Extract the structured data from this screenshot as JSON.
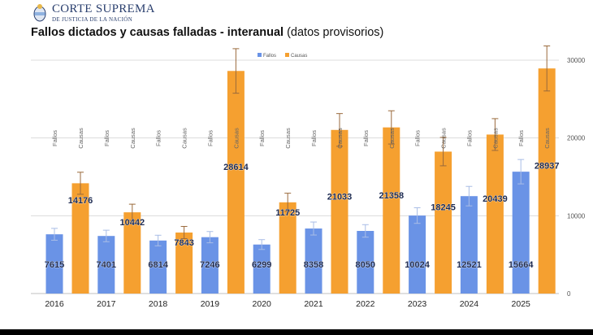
{
  "header": {
    "org_name": "CORTE SUPREMA",
    "org_sub": "DE JUSTICIA DE LA NACIÓN"
  },
  "colors": {
    "fallos": "#6a93e6",
    "causas": "#f5a030",
    "error_bar": "#9a6a3c"
  },
  "chart_data": {
    "type": "bar",
    "title": "Fallos dictados y causas falladas - interanual",
    "subtitle": "(datos provisorios)",
    "categories": [
      "2016",
      "2017",
      "2018",
      "2019",
      "2020",
      "2021",
      "2022",
      "2023",
      "2024",
      "2025"
    ],
    "series": [
      {
        "name": "Fallos",
        "values": [
          7615,
          7401,
          6814,
          7246,
          6299,
          8358,
          8050,
          10024,
          12521,
          15664
        ]
      },
      {
        "name": "Causas",
        "values": [
          14176,
          10442,
          7843,
          28614,
          11725,
          21033,
          21358,
          18245,
          20439,
          28937
        ]
      }
    ],
    "error_bars": "±10%",
    "ylim": [
      0,
      30000
    ],
    "yticks": [
      0,
      10000,
      20000,
      30000
    ],
    "yaxis_position": "right",
    "grid": true,
    "legend": "top-left"
  }
}
